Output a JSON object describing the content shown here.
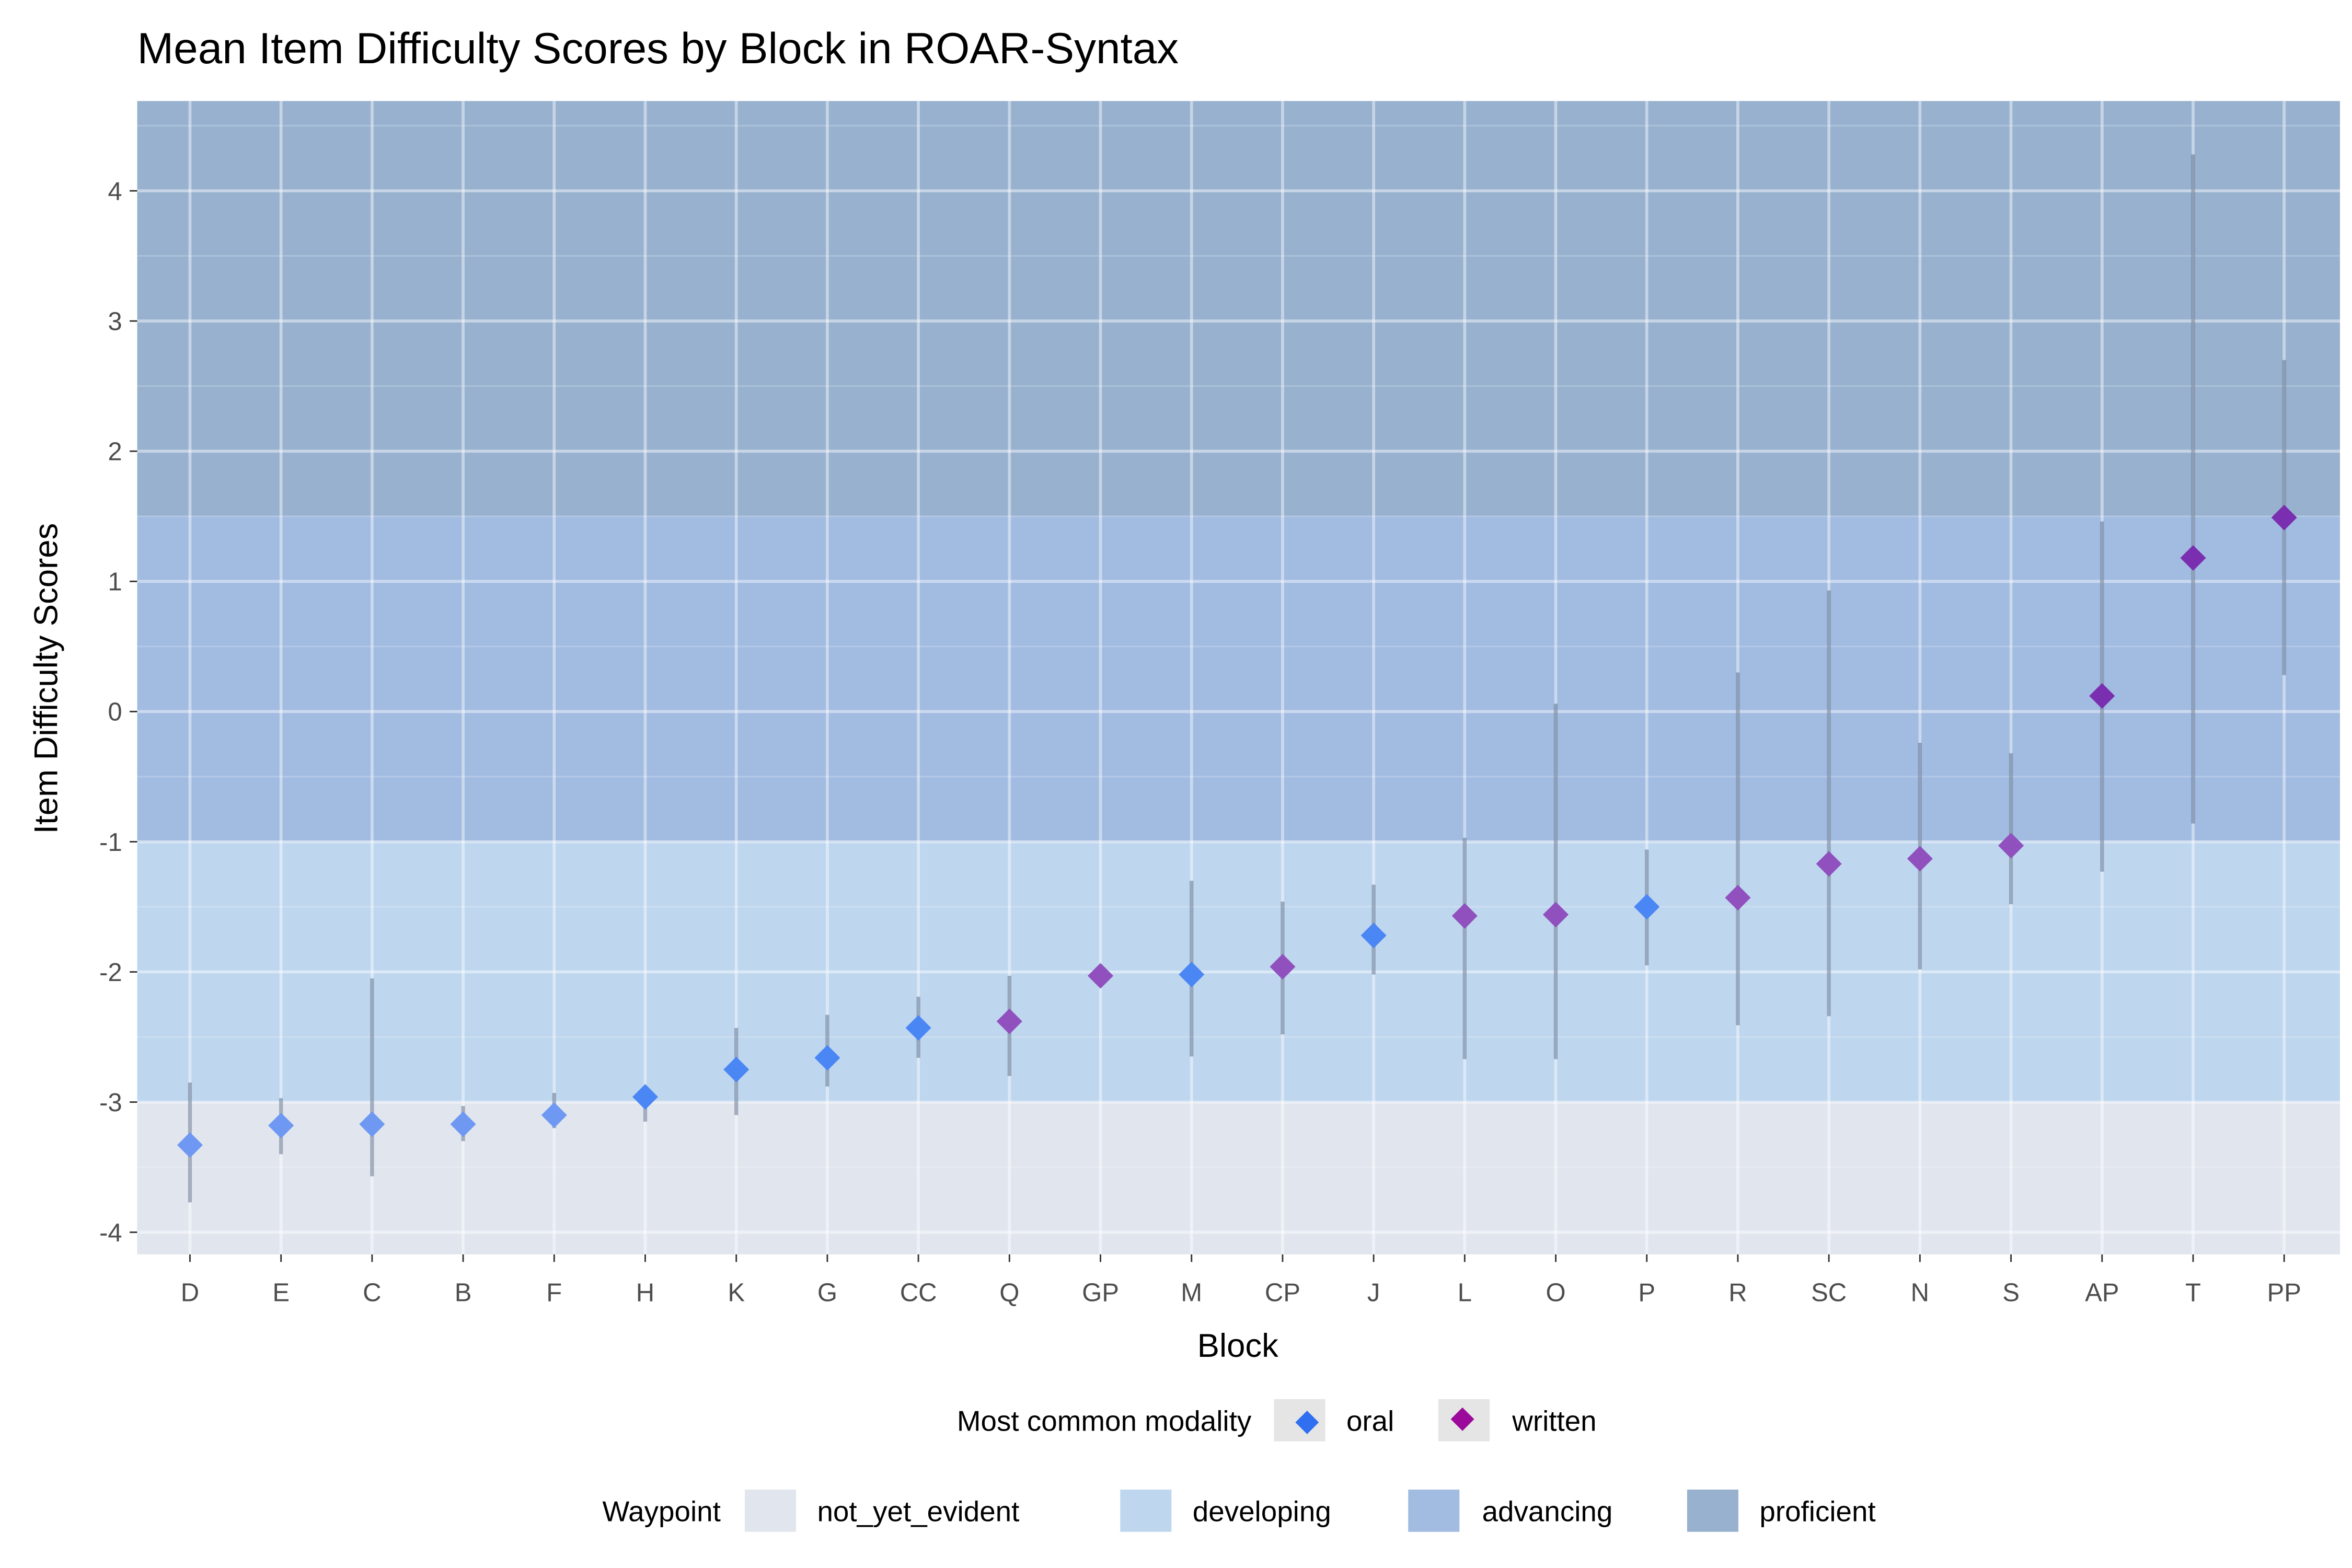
{
  "chart_data": {
    "type": "scatter",
    "title": "Mean Item Difficulty Scores by Block in ROAR-Syntax",
    "xlabel": "Block",
    "ylabel": "Item Difficulty Scores",
    "ylim": [
      -4.17,
      4.69
    ],
    "yticks": [
      -4,
      -3,
      -2,
      -1,
      0,
      1,
      2,
      3,
      4
    ],
    "grid": true,
    "bands": [
      {
        "name": "not_yet_evident",
        "from": -4.17,
        "to": -3,
        "color": "#e1e5ee"
      },
      {
        "name": "developing",
        "from": -3,
        "to": -1,
        "color": "#bed6ee"
      },
      {
        "name": "advancing",
        "from": -1,
        "to": 1.5,
        "color": "#a1bbe1"
      },
      {
        "name": "proficient",
        "from": 1.5,
        "to": 4.69,
        "color": "#97b1cf"
      }
    ],
    "modality_colors": {
      "oral": "#2f6ff0",
      "written": "#9b0a9b"
    },
    "categories": [
      "D",
      "E",
      "C",
      "B",
      "F",
      "H",
      "K",
      "G",
      "CC",
      "Q",
      "GP",
      "M",
      "CP",
      "J",
      "L",
      "O",
      "P",
      "R",
      "SC",
      "N",
      "S",
      "AP",
      "T",
      "PP"
    ],
    "points": [
      {
        "block": "D",
        "mean": -3.33,
        "lo": -3.77,
        "hi": -2.85,
        "modality": "oral",
        "color": "#6e98f2"
      },
      {
        "block": "E",
        "mean": -3.18,
        "lo": -3.4,
        "hi": -2.97,
        "modality": "oral",
        "color": "#6e98f2"
      },
      {
        "block": "C",
        "mean": -3.17,
        "lo": -3.57,
        "hi": -2.05,
        "modality": "oral",
        "color": "#6e98f2"
      },
      {
        "block": "B",
        "mean": -3.17,
        "lo": -3.3,
        "hi": -3.03,
        "modality": "oral",
        "color": "#6e98f2"
      },
      {
        "block": "F",
        "mean": -3.1,
        "lo": -3.2,
        "hi": -2.93,
        "modality": "oral",
        "color": "#6e98f2"
      },
      {
        "block": "H",
        "mean": -2.96,
        "lo": -3.15,
        "hi": -2.9,
        "modality": "oral",
        "color": "#4a86f4"
      },
      {
        "block": "K",
        "mean": -2.75,
        "lo": -3.1,
        "hi": -2.43,
        "modality": "oral",
        "color": "#4a86f4"
      },
      {
        "block": "G",
        "mean": -2.66,
        "lo": -2.88,
        "hi": -2.33,
        "modality": "oral",
        "color": "#4a86f4"
      },
      {
        "block": "CC",
        "mean": -2.43,
        "lo": -2.66,
        "hi": -2.19,
        "modality": "oral",
        "color": "#4a86f4"
      },
      {
        "block": "Q",
        "mean": -2.38,
        "lo": -2.8,
        "hi": -2.03,
        "modality": "written",
        "color": "#9050bd"
      },
      {
        "block": "GP",
        "mean": -2.03,
        "lo": -2.03,
        "hi": -2.03,
        "modality": "written",
        "color": "#9050bd"
      },
      {
        "block": "M",
        "mean": -2.02,
        "lo": -2.65,
        "hi": -1.3,
        "modality": "oral",
        "color": "#4a86f4"
      },
      {
        "block": "CP",
        "mean": -1.96,
        "lo": -2.48,
        "hi": -1.46,
        "modality": "written",
        "color": "#9050bd"
      },
      {
        "block": "J",
        "mean": -1.72,
        "lo": -2.02,
        "hi": -1.33,
        "modality": "oral",
        "color": "#4a86f4"
      },
      {
        "block": "L",
        "mean": -1.57,
        "lo": -2.67,
        "hi": -0.97,
        "modality": "written",
        "color": "#9050bd"
      },
      {
        "block": "O",
        "mean": -1.56,
        "lo": -2.67,
        "hi": 0.06,
        "modality": "written",
        "color": "#9050bd"
      },
      {
        "block": "P",
        "mean": -1.5,
        "lo": -1.95,
        "hi": -1.06,
        "modality": "oral",
        "color": "#4a86f4"
      },
      {
        "block": "R",
        "mean": -1.43,
        "lo": -2.41,
        "hi": 0.3,
        "modality": "written",
        "color": "#9050bd"
      },
      {
        "block": "SC",
        "mean": -1.17,
        "lo": -2.34,
        "hi": 0.93,
        "modality": "written",
        "color": "#9050bd"
      },
      {
        "block": "N",
        "mean": -1.13,
        "lo": -1.98,
        "hi": -0.24,
        "modality": "written",
        "color": "#9050bd"
      },
      {
        "block": "S",
        "mean": -1.03,
        "lo": -1.48,
        "hi": -0.32,
        "modality": "written",
        "color": "#9050bd"
      },
      {
        "block": "AP",
        "mean": 0.12,
        "lo": -1.23,
        "hi": 1.46,
        "modality": "written",
        "color": "#7a2eb0"
      },
      {
        "block": "T",
        "mean": 1.18,
        "lo": -0.86,
        "hi": 4.28,
        "modality": "written",
        "color": "#7a2eb0"
      },
      {
        "block": "PP",
        "mean": 1.49,
        "lo": 0.28,
        "hi": 2.7,
        "modality": "written",
        "color": "#7a2eb0"
      }
    ],
    "legends": {
      "modality": {
        "title": "Most common modality",
        "items": [
          "oral",
          "written"
        ]
      },
      "waypoint": {
        "title": "Waypoint",
        "items": [
          "not_yet_evident",
          "developing",
          "advancing",
          "proficient"
        ]
      }
    }
  }
}
